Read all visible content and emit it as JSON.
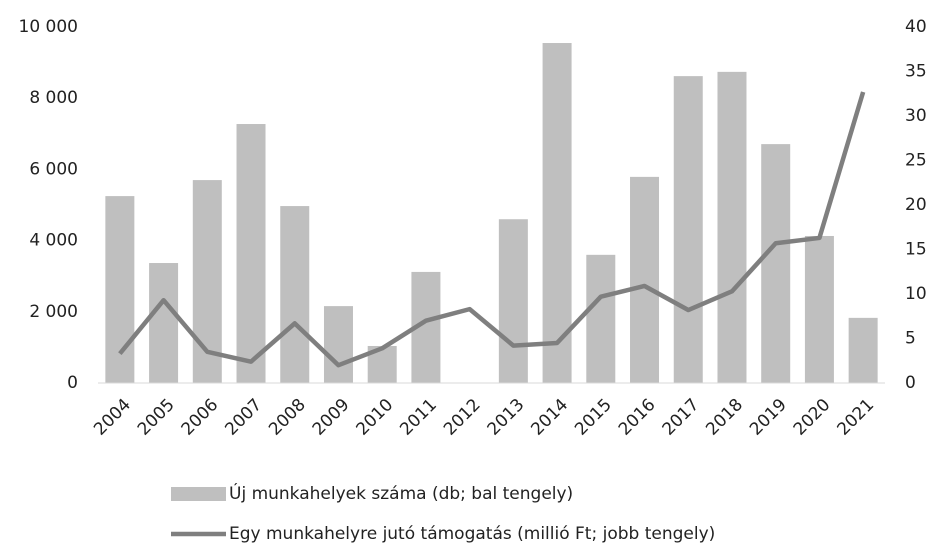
{
  "chart_data": {
    "type": "bar-line",
    "categories": [
      "2004",
      "2005",
      "2006",
      "2007",
      "2008",
      "2009",
      "2010",
      "2011",
      "2012",
      "2013",
      "2014",
      "2015",
      "2016",
      "2017",
      "2018",
      "2019",
      "2020",
      "2021"
    ],
    "series": [
      {
        "name": "Új munkahelyek száma (db; bal tengely)",
        "color": "#bfbfbf",
        "type": "bar",
        "axis": "y",
        "values": [
          5250,
          3370,
          5700,
          7275,
          4970,
          2160,
          1040,
          3120,
          0,
          4600,
          9550,
          3600,
          5790,
          8620,
          8740,
          6710,
          4130,
          1830
        ]
      },
      {
        "name": "Egy munkahelyre jutó támogatás (millió Ft; jobb tengely)",
        "color": "#7f7f7f",
        "type": "line",
        "axis": "y2",
        "values": [
          3.3,
          9.3,
          3.5,
          2.4,
          6.7,
          2.0,
          3.9,
          7.0,
          8.3,
          4.2,
          4.5,
          9.7,
          10.9,
          8.2,
          10.3,
          15.7,
          16.3,
          32.7
        ]
      }
    ],
    "ylim": [
      0,
      10000
    ],
    "yticks": [
      0,
      {
        "value": 2000,
        "label": "2 000"
      },
      {
        "value": 4000,
        "label": "4 000"
      },
      {
        "value": 6000,
        "label": "6 000"
      },
      {
        "value": 8000,
        "label": "8 000"
      },
      {
        "value": 10000,
        "label": "10 000"
      }
    ],
    "y2lim": [
      0,
      40
    ],
    "y2ticks": [
      0,
      5,
      10,
      15,
      20,
      25,
      30,
      35,
      40
    ],
    "grid": false,
    "legend": "bottom"
  }
}
